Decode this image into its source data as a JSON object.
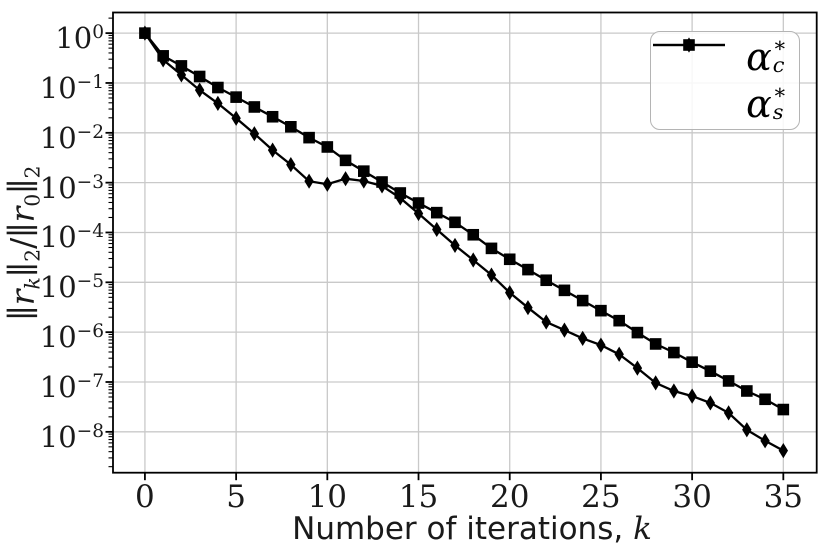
{
  "chart_data": {
    "type": "line",
    "title": "",
    "scale_y": "log",
    "grid": true,
    "legend_position": "upper right",
    "xlabel_plain": "Number of iterations, k",
    "xlabel_segments": [
      {
        "t": "Number of iterations, ",
        "sans": true
      },
      {
        "t": "k",
        "italic": true
      }
    ],
    "ylabel_plain": "‖r_k‖_2 / ‖r_0‖_2",
    "ylabel_segments": [
      {
        "t": "∥"
      },
      {
        "t": "r",
        "italic": true
      },
      {
        "t": "k",
        "italic": true,
        "sub": true
      },
      {
        "t": "∥"
      },
      {
        "t": "2",
        "sub": true
      },
      {
        "t": "/"
      },
      {
        "t": "∥"
      },
      {
        "t": "r",
        "italic": true
      },
      {
        "t": "0",
        "sub": true
      },
      {
        "t": "∥"
      },
      {
        "t": "2",
        "sub": true
      }
    ],
    "x_ticks": [
      0,
      5,
      10,
      15,
      20,
      25,
      30,
      35
    ],
    "y_tick_exponents": [
      0,
      -1,
      -2,
      -3,
      -4,
      -5,
      -6,
      -7,
      -8
    ],
    "xlim": [
      -1.75,
      36.83
    ],
    "ylim_exponents": [
      0.414,
      -8.82
    ],
    "x": [
      0,
      1,
      2,
      3,
      4,
      5,
      6,
      7,
      8,
      9,
      10,
      11,
      12,
      13,
      14,
      15,
      16,
      17,
      18,
      19,
      20,
      21,
      22,
      23,
      24,
      25,
      26,
      27,
      28,
      29,
      30,
      31,
      32,
      33,
      34,
      35
    ],
    "series": [
      {
        "name": "alpha-c-star",
        "label_plain": "α_c^*",
        "label": {
          "base": "α",
          "sup": "∗",
          "sub": "c"
        },
        "marker": "square",
        "color": "#000000",
        "values": [
          1.0,
          0.35,
          0.22,
          0.135,
          0.081,
          0.052,
          0.033,
          0.021,
          0.0132,
          0.008,
          0.0052,
          0.0028,
          0.0017,
          0.00103,
          0.00062,
          0.00039,
          0.00025,
          0.00016,
          9e-05,
          4.8e-05,
          2.9e-05,
          1.8e-05,
          1.1e-05,
          6.9e-06,
          4.3e-06,
          2.7e-06,
          1.7e-06,
          9.8e-07,
          5.8e-07,
          3.9e-07,
          2.5e-07,
          1.65e-07,
          1.05e-07,
          6.6e-08,
          4.5e-08,
          2.8e-08
        ]
      },
      {
        "name": "alpha-s-star",
        "label_plain": "α_s^*",
        "label": {
          "base": "α",
          "sup": "∗",
          "sub": "s"
        },
        "marker": "diamond",
        "color": "#000000",
        "values": [
          1.0,
          0.29,
          0.145,
          0.072,
          0.039,
          0.0196,
          0.0096,
          0.0045,
          0.0023,
          0.00107,
          0.00093,
          0.0012,
          0.00108,
          0.00086,
          0.00049,
          0.00024,
          0.000115,
          5.5e-05,
          2.8e-05,
          1.4e-05,
          6.2e-06,
          3.1e-06,
          1.6e-06,
          1.1e-06,
          7.5e-07,
          5.5e-07,
          3.6e-07,
          1.9e-07,
          9.6e-08,
          6.6e-08,
          5.2e-08,
          3.8e-08,
          2.4e-08,
          1.1e-08,
          6.6e-09,
          4.2e-09
        ]
      }
    ],
    "colors": {
      "line": "#000000",
      "grid": "#c9c9c9",
      "spine": "#000000",
      "legend_border": "#b4b4b4",
      "text": "#1a1a1a"
    }
  }
}
